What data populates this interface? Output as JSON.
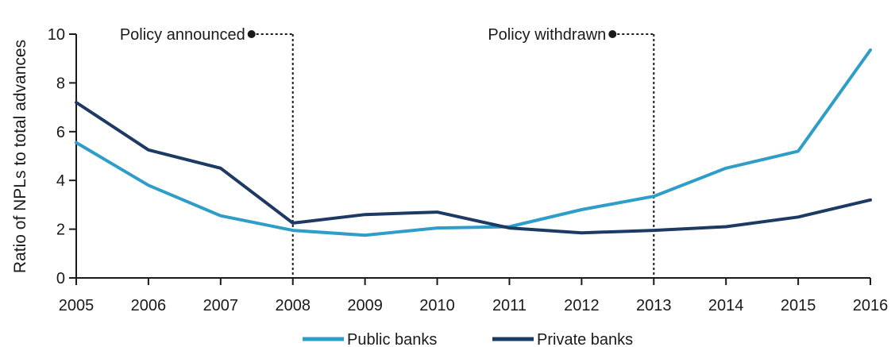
{
  "chart_data": {
    "type": "line",
    "title": "",
    "xlabel": "",
    "ylabel": "Ratio of NPLs to total advances",
    "x": [
      2005,
      2006,
      2007,
      2008,
      2009,
      2010,
      2011,
      2012,
      2013,
      2014,
      2015,
      2016
    ],
    "xlim": [
      2005,
      2016
    ],
    "ylim": [
      0,
      10
    ],
    "yticks": [
      0,
      2,
      4,
      6,
      8,
      10
    ],
    "grid": false,
    "legend_position": "bottom",
    "series": [
      {
        "name": "Public banks",
        "color": "#2e9ec9",
        "values": [
          5.55,
          3.8,
          2.55,
          1.95,
          1.75,
          2.05,
          2.1,
          2.8,
          3.35,
          4.5,
          5.2,
          9.35
        ]
      },
      {
        "name": "Private banks",
        "color": "#1c3a63",
        "values": [
          7.2,
          5.25,
          4.5,
          2.25,
          2.6,
          2.7,
          2.05,
          1.85,
          1.95,
          2.1,
          2.5,
          3.2
        ]
      }
    ],
    "annotations": [
      {
        "text": "Policy announced",
        "x": 2008,
        "y": 10
      },
      {
        "text": "Policy withdrawn",
        "x": 2013,
        "y": 10
      }
    ]
  }
}
